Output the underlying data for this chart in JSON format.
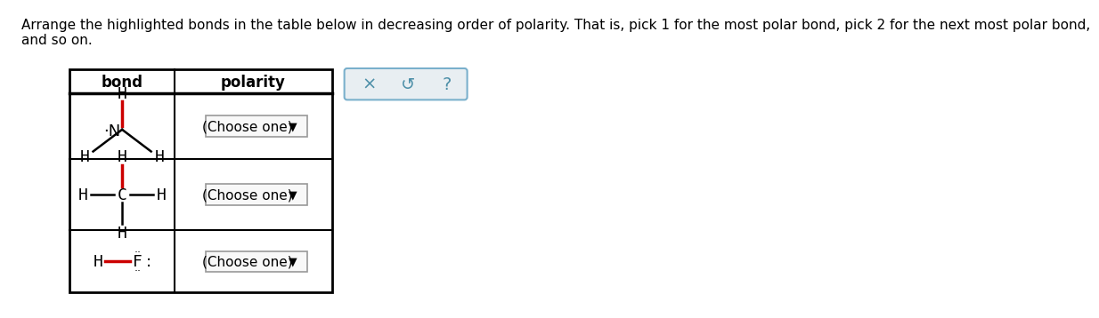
{
  "background_color": "#ffffff",
  "table_line_color": "#000000",
  "highlight_bond_color": "#cc0000",
  "bond_text_color": "#000000",
  "header_bond": "bond",
  "header_polarity": "polarity",
  "choose_one_text": "(Choose one)",
  "choose_arrow": "▼",
  "widget_box_bg": "#e8eef2",
  "widget_box_border": "#7ab0cc",
  "widget_symbols_color": "#4d8fa8",
  "title_line1": "Arrange the highlighted bonds in the table below in decreasing order of polarity. That is, pick 1 for the most polar bond, pick 2 for the next most polar bond,",
  "title_line2": "and so on.",
  "title_fontsize": 11,
  "mol_fontsize": 13,
  "header_fontsize": 12,
  "btn_fontsize": 11
}
